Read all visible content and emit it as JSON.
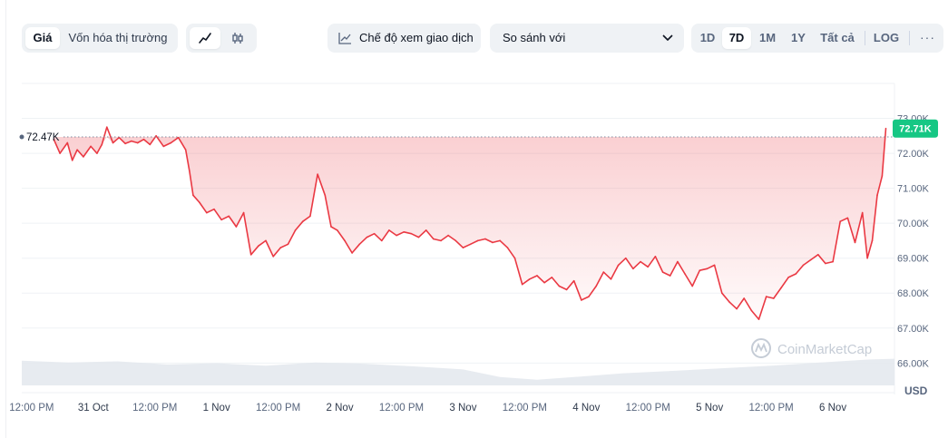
{
  "toolbar": {
    "tabs": [
      "Giá",
      "Vốn hóa thị trường"
    ],
    "active_tab": "Giá",
    "chart_type_icons": [
      "line-chart-icon",
      "candlestick-icon"
    ],
    "view_mode_label": "Chế độ xem giao dịch",
    "compare_label": "So sánh với",
    "ranges": [
      "1D",
      "7D",
      "1M",
      "1Y",
      "Tất cả"
    ],
    "active_range": "7D",
    "log_label": "LOG",
    "more_label": "···"
  },
  "colors": {
    "up": "#16c784",
    "down": "#ea3943",
    "grid": "#eff2f5",
    "text_muted": "#58667e"
  },
  "chart_data": {
    "type": "area",
    "currency_label": "USD",
    "watermark": "CoinMarketCap",
    "reference_value": 72470,
    "reference_label": "72.47K",
    "current_value": 72710,
    "current_label": "72.71K",
    "y_ticks": [
      66000,
      67000,
      68000,
      69000,
      70000,
      71000,
      72000,
      73000
    ],
    "y_tick_labels": [
      "66.00K",
      "67.00K",
      "68.00K",
      "69.00K",
      "70.00K",
      "71.00K",
      "72.00K",
      "73.00K"
    ],
    "ylim": [
      65100,
      74000
    ],
    "x_ticks": [
      {
        "t": 0,
        "label": "12:00 PM"
      },
      {
        "t": 0.5,
        "label": "31 Oct"
      },
      {
        "t": 1.0,
        "label": "12:00 PM"
      },
      {
        "t": 1.5,
        "label": "1 Nov"
      },
      {
        "t": 2.0,
        "label": "12:00 PM"
      },
      {
        "t": 2.5,
        "label": "2 Nov"
      },
      {
        "t": 3.0,
        "label": "12:00 PM"
      },
      {
        "t": 3.5,
        "label": "3 Nov"
      },
      {
        "t": 4.0,
        "label": "12:00 PM"
      },
      {
        "t": 4.5,
        "label": "4 Nov"
      },
      {
        "t": 5.0,
        "label": "12:00 PM"
      },
      {
        "t": 5.5,
        "label": "5 Nov"
      },
      {
        "t": 6.0,
        "label": "12:00 PM"
      },
      {
        "t": 6.5,
        "label": "6 Nov"
      }
    ],
    "xlim": [
      -0.08,
      7.0
    ],
    "price_series": {
      "t": [
        0.18,
        0.23,
        0.29,
        0.33,
        0.37,
        0.42,
        0.48,
        0.53,
        0.57,
        0.61,
        0.66,
        0.71,
        0.76,
        0.81,
        0.86,
        0.91,
        0.96,
        1.01,
        1.07,
        1.13,
        1.19,
        1.25,
        1.28,
        1.31,
        1.36,
        1.42,
        1.48,
        1.54,
        1.6,
        1.66,
        1.72,
        1.78,
        1.84,
        1.9,
        1.96,
        2.02,
        2.08,
        2.14,
        2.2,
        2.26,
        2.32,
        2.38,
        2.43,
        2.48,
        2.54,
        2.6,
        2.66,
        2.72,
        2.78,
        2.84,
        2.9,
        2.96,
        3.02,
        3.08,
        3.14,
        3.2,
        3.26,
        3.32,
        3.38,
        3.44,
        3.5,
        3.56,
        3.62,
        3.68,
        3.74,
        3.8,
        3.86,
        3.92,
        3.98,
        4.04,
        4.1,
        4.16,
        4.22,
        4.28,
        4.34,
        4.4,
        4.46,
        4.52,
        4.58,
        4.64,
        4.7,
        4.76,
        4.82,
        4.88,
        4.94,
        5.0,
        5.06,
        5.12,
        5.18,
        5.24,
        5.3,
        5.36,
        5.42,
        5.48,
        5.54,
        5.6,
        5.66,
        5.72,
        5.78,
        5.84,
        5.9,
        5.96,
        6.02,
        6.08,
        6.14,
        6.2,
        6.26,
        6.32,
        6.38,
        6.44,
        6.5,
        6.56,
        6.62,
        6.68,
        6.74,
        6.78,
        6.82,
        6.86,
        6.9,
        6.93
      ],
      "v": [
        72400,
        72000,
        72300,
        71800,
        72100,
        71900,
        72200,
        72000,
        72250,
        72750,
        72300,
        72450,
        72280,
        72350,
        72300,
        72400,
        72250,
        72500,
        72200,
        72300,
        72450,
        72100,
        71500,
        70800,
        70600,
        70300,
        70400,
        70100,
        70200,
        69900,
        70300,
        69100,
        69350,
        69500,
        69050,
        69300,
        69400,
        69800,
        70050,
        70200,
        71400,
        70800,
        69900,
        69800,
        69500,
        69150,
        69400,
        69600,
        69700,
        69500,
        69800,
        69650,
        69750,
        69700,
        69600,
        69800,
        69550,
        69500,
        69650,
        69500,
        69300,
        69400,
        69500,
        69550,
        69450,
        69500,
        69300,
        69000,
        68250,
        68400,
        68500,
        68300,
        68450,
        68200,
        68100,
        68350,
        67800,
        67900,
        68200,
        68600,
        68400,
        68800,
        69000,
        68700,
        68900,
        68750,
        69050,
        68600,
        68500,
        68900,
        68550,
        68200,
        68650,
        68700,
        68800,
        68000,
        67750,
        67550,
        67850,
        67500,
        67250,
        67900,
        67850,
        68150,
        68450,
        68550,
        68800,
        68950,
        69100,
        68850,
        68900,
        70050,
        70150,
        69450,
        70300,
        69000,
        69500,
        70800,
        71350,
        72710
      ]
    },
    "volume_series": {
      "t": [
        -0.08,
        0.3,
        0.7,
        1.1,
        1.5,
        1.9,
        2.3,
        2.7,
        3.1,
        3.5,
        3.8,
        4.1,
        4.4,
        4.8,
        5.2,
        5.6,
        6.0,
        6.4,
        6.8,
        7.0
      ],
      "v": [
        0.65,
        0.6,
        0.63,
        0.55,
        0.58,
        0.52,
        0.6,
        0.57,
        0.5,
        0.42,
        0.22,
        0.15,
        0.22,
        0.32,
        0.38,
        0.45,
        0.52,
        0.6,
        0.68,
        0.7
      ]
    }
  }
}
